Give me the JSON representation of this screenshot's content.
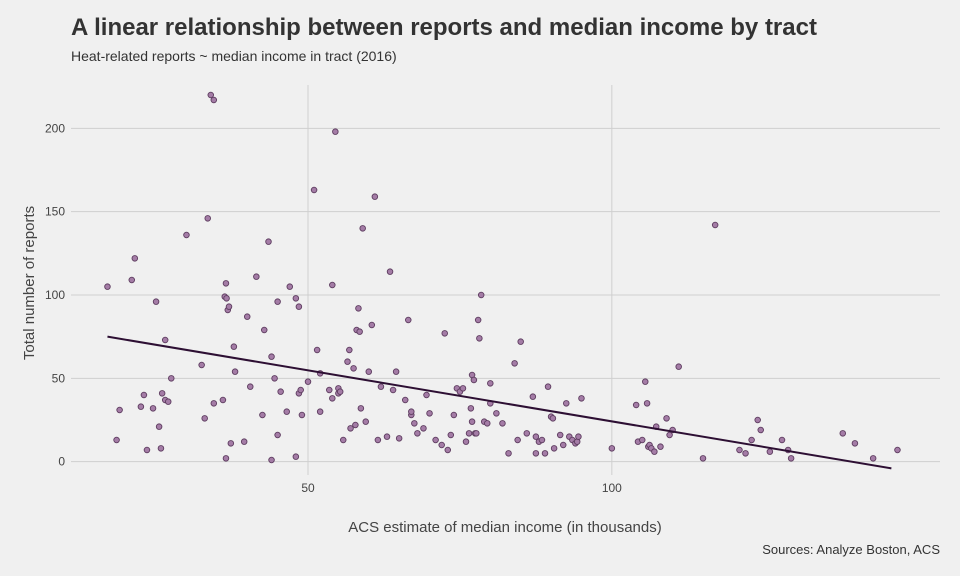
{
  "chart_data": {
    "type": "scatter",
    "title": "A linear relationship between reports and median income by tract",
    "subtitle": "Heat-related reports ~ median income in tract (2016)",
    "caption": "Sources: Analyze Boston, ACS",
    "xlabel": "ACS estimate of median income (in thousands)",
    "ylabel": "Total number of reports",
    "xlim": [
      11,
      154
    ],
    "ylim": [
      -8,
      226
    ],
    "xticks": [
      50,
      100
    ],
    "yticks": [
      0,
      50,
      100,
      150,
      200
    ],
    "grid": true,
    "point_color": "#a47ca6",
    "trend_color": "#2d0f33",
    "trend": {
      "x": [
        17,
        146
      ],
      "y": [
        75,
        -4
      ]
    },
    "points": [
      [
        17,
        105
      ],
      [
        18.5,
        13
      ],
      [
        19,
        31
      ],
      [
        21,
        109
      ],
      [
        21.5,
        122
      ],
      [
        22.5,
        33
      ],
      [
        23,
        40
      ],
      [
        23.5,
        7
      ],
      [
        24.5,
        32
      ],
      [
        25,
        96
      ],
      [
        25.5,
        21
      ],
      [
        25.8,
        8
      ],
      [
        26,
        41
      ],
      [
        26.5,
        37
      ],
      [
        26.5,
        73
      ],
      [
        27,
        36
      ],
      [
        27.5,
        50
      ],
      [
        30,
        136
      ],
      [
        32.5,
        58
      ],
      [
        33,
        26
      ],
      [
        33.5,
        146
      ],
      [
        34,
        220
      ],
      [
        34.5,
        217
      ],
      [
        34.5,
        35
      ],
      [
        36,
        37
      ],
      [
        36.5,
        2
      ],
      [
        36.3,
        99
      ],
      [
        36.5,
        107
      ],
      [
        36.6,
        98
      ],
      [
        36.8,
        91
      ],
      [
        37,
        93
      ],
      [
        37.3,
        11
      ],
      [
        37.8,
        69
      ],
      [
        38,
        54
      ],
      [
        39.5,
        12
      ],
      [
        40,
        87
      ],
      [
        40.5,
        45
      ],
      [
        41.5,
        111
      ],
      [
        42.5,
        28
      ],
      [
        42.8,
        79
      ],
      [
        43.5,
        132
      ],
      [
        44,
        63
      ],
      [
        44,
        1
      ],
      [
        44.5,
        50
      ],
      [
        45,
        96
      ],
      [
        45,
        16
      ],
      [
        45.5,
        42
      ],
      [
        46.5,
        30
      ],
      [
        47,
        105
      ],
      [
        48,
        98
      ],
      [
        48,
        3
      ],
      [
        48.5,
        41
      ],
      [
        48.5,
        93
      ],
      [
        48.8,
        43
      ],
      [
        49,
        28
      ],
      [
        50,
        48
      ],
      [
        51,
        163
      ],
      [
        51.5,
        67
      ],
      [
        52,
        53
      ],
      [
        52,
        30
      ],
      [
        53.5,
        43
      ],
      [
        54,
        38
      ],
      [
        54,
        106
      ],
      [
        54.5,
        198
      ],
      [
        55,
        44
      ],
      [
        55,
        41
      ],
      [
        55.3,
        42
      ],
      [
        55.8,
        13
      ],
      [
        56.5,
        60
      ],
      [
        56.8,
        67
      ],
      [
        57,
        20
      ],
      [
        57.5,
        56
      ],
      [
        57.8,
        22
      ],
      [
        58,
        79
      ],
      [
        58.3,
        92
      ],
      [
        58.5,
        78
      ],
      [
        58.7,
        32
      ],
      [
        59,
        140
      ],
      [
        59.5,
        24
      ],
      [
        60,
        54
      ],
      [
        60.5,
        82
      ],
      [
        61,
        159
      ],
      [
        61.5,
        13
      ],
      [
        62,
        45
      ],
      [
        63,
        15
      ],
      [
        63.5,
        114
      ],
      [
        64,
        43
      ],
      [
        64.5,
        54
      ],
      [
        65,
        14
      ],
      [
        66,
        37
      ],
      [
        66.5,
        85
      ],
      [
        67,
        28
      ],
      [
        67.5,
        23
      ],
      [
        67,
        30
      ],
      [
        68,
        17
      ],
      [
        69,
        20
      ],
      [
        69.5,
        40
      ],
      [
        70,
        29
      ],
      [
        71,
        13
      ],
      [
        72,
        10
      ],
      [
        72.5,
        77
      ],
      [
        73,
        7
      ],
      [
        73.5,
        16
      ],
      [
        74,
        28
      ],
      [
        74.5,
        44
      ],
      [
        75,
        42
      ],
      [
        75.5,
        44
      ],
      [
        76,
        12
      ],
      [
        76.5,
        17
      ],
      [
        76.8,
        32
      ],
      [
        77,
        52
      ],
      [
        77,
        24
      ],
      [
        77.3,
        49
      ],
      [
        77.5,
        17
      ],
      [
        77.7,
        17
      ],
      [
        78,
        85
      ],
      [
        78.2,
        74
      ],
      [
        78.5,
        100
      ],
      [
        79,
        24
      ],
      [
        79.5,
        23
      ],
      [
        80,
        35
      ],
      [
        80,
        47
      ],
      [
        81,
        29
      ],
      [
        82,
        23
      ],
      [
        83,
        5
      ],
      [
        84,
        59
      ],
      [
        84.5,
        13
      ],
      [
        85,
        72
      ],
      [
        86,
        17
      ],
      [
        87,
        39
      ],
      [
        87.5,
        5
      ],
      [
        87.5,
        15
      ],
      [
        88,
        12
      ],
      [
        88.5,
        13
      ],
      [
        89,
        5
      ],
      [
        89.5,
        45
      ],
      [
        90,
        27
      ],
      [
        90.3,
        26
      ],
      [
        90.5,
        8
      ],
      [
        91.5,
        16
      ],
      [
        92,
        10
      ],
      [
        92.5,
        35
      ],
      [
        93,
        15
      ],
      [
        93.5,
        13
      ],
      [
        94,
        11
      ],
      [
        94.3,
        12
      ],
      [
        94.5,
        15
      ],
      [
        95,
        38
      ],
      [
        100,
        8
      ],
      [
        104,
        34
      ],
      [
        104.3,
        12
      ],
      [
        105,
        13
      ],
      [
        105.5,
        48
      ],
      [
        105.8,
        35
      ],
      [
        106,
        9
      ],
      [
        106.2,
        10
      ],
      [
        106.5,
        8
      ],
      [
        107,
        6
      ],
      [
        107.3,
        21
      ],
      [
        108,
        9
      ],
      [
        109,
        26
      ],
      [
        109.5,
        16
      ],
      [
        110,
        19
      ],
      [
        111,
        57
      ],
      [
        115,
        2
      ],
      [
        117,
        142
      ],
      [
        121,
        7
      ],
      [
        122,
        5
      ],
      [
        123,
        13
      ],
      [
        124,
        25
      ],
      [
        124.5,
        19
      ],
      [
        126,
        6
      ],
      [
        128,
        13
      ],
      [
        129,
        7
      ],
      [
        129.5,
        2
      ],
      [
        138,
        17
      ],
      [
        140,
        11
      ],
      [
        143,
        2
      ],
      [
        147,
        7
      ]
    ]
  }
}
